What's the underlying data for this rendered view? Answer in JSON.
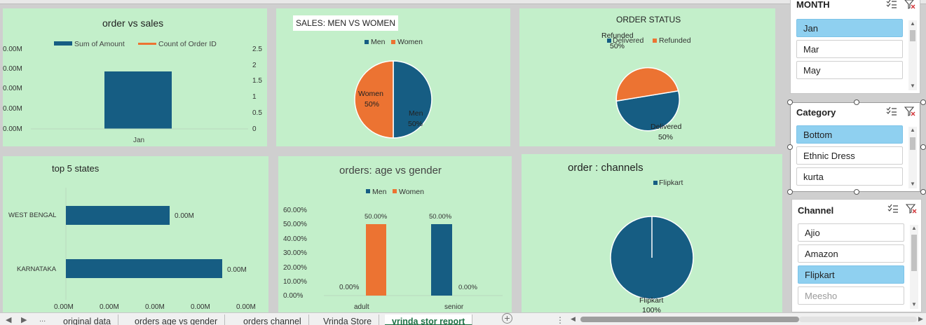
{
  "panels": {
    "order_sales": {
      "title": "order  vs sales",
      "legend": [
        "Sum of Amount",
        "Count of Order ID"
      ],
      "y_left_ticks": [
        "0.00M",
        "0.00M",
        "0.00M",
        "0.00M",
        "0.00M"
      ],
      "y_right_ticks": [
        "2.5",
        "2",
        "1.5",
        "1",
        "0.5",
        "0"
      ],
      "x_label": "Jan"
    },
    "sales_gender": {
      "title": "SALES: MEN VS WOMEN",
      "legend": [
        "Men",
        "Women"
      ],
      "labels": [
        {
          "name": "Women",
          "pct": "50%"
        },
        {
          "name": "Men",
          "pct": "50%"
        }
      ]
    },
    "order_status": {
      "title": "ORDER STATUS",
      "legend": [
        "Delivered",
        "Refunded"
      ],
      "labels": [
        {
          "name": "Refunded",
          "pct": "50%"
        },
        {
          "name": "Delivered",
          "pct": "50%"
        }
      ]
    },
    "top_states": {
      "title": "top 5 states",
      "categories": [
        "WEST BENGAL",
        "KARNATAKA"
      ],
      "data_labels": [
        "0.00M",
        "0.00M"
      ],
      "x_ticks": [
        "0.00M",
        "0.00M",
        "0.00M",
        "0.00M",
        "0.00M"
      ]
    },
    "age_gender": {
      "title": "orders: age vs gender",
      "legend": [
        "Men",
        "Women"
      ],
      "y_ticks": [
        "60.00%",
        "50.00%",
        "40.00%",
        "30.00%",
        "20.00%",
        "10.00%",
        "0.00%"
      ],
      "categories": [
        "adult",
        "senior"
      ],
      "data_labels": {
        "adult_men": "0.00%",
        "adult_women": "50.00%",
        "senior_men": "50.00%",
        "senior_women": "0.00%"
      }
    },
    "channels": {
      "title": "order :  channels",
      "legend": [
        "Flipkart"
      ],
      "label_name": "Flipkart",
      "label_pct": "100%"
    }
  },
  "slicers": {
    "month": {
      "title": "MONTH",
      "items": [
        {
          "label": "Jan",
          "selected": true
        },
        {
          "label": "Mar",
          "selected": false
        },
        {
          "label": "May",
          "selected": false
        }
      ]
    },
    "category": {
      "title": "Category",
      "items": [
        {
          "label": "Bottom",
          "selected": true
        },
        {
          "label": "Ethnic Dress",
          "selected": false
        },
        {
          "label": "kurta",
          "selected": false
        }
      ]
    },
    "channel": {
      "title": "Channel",
      "items": [
        {
          "label": "Ajio",
          "selected": false
        },
        {
          "label": "Amazon",
          "selected": false
        },
        {
          "label": "Flipkart",
          "selected": true
        },
        {
          "label": "Meesho",
          "selected": false
        }
      ]
    }
  },
  "tabs": [
    "original data",
    "orders age vs gender",
    "orders channel",
    "Vrinda Store",
    "vrinda stor report"
  ],
  "active_tab": "vrinda stor report",
  "nav": {
    "more": "...",
    "add": "+",
    "menu": "⋮"
  },
  "colors": {
    "blue": "#165d83",
    "orange": "#ec7332",
    "panel": "#c3efca",
    "selected": "#8fd0f0"
  },
  "chart_data": [
    {
      "type": "bar",
      "title": "order  vs sales",
      "categories": [
        "Jan"
      ],
      "series": [
        {
          "name": "Sum of Amount",
          "values": [
            0
          ]
        },
        {
          "name": "Count of Order ID",
          "values": [
            1.5
          ]
        }
      ],
      "ylim_right": [
        0,
        2.5
      ]
    },
    {
      "type": "pie",
      "title": "SALES: MEN VS WOMEN",
      "categories": [
        "Men",
        "Women"
      ],
      "values": [
        50,
        50
      ]
    },
    {
      "type": "pie",
      "title": "ORDER STATUS",
      "categories": [
        "Delivered",
        "Refunded"
      ],
      "values": [
        50,
        50
      ]
    },
    {
      "type": "bar",
      "title": "top 5 states",
      "categories": [
        "WEST BENGAL",
        "KARNATAKA"
      ],
      "values": [
        0,
        0
      ],
      "relative_lengths": [
        0.66,
        1.0
      ]
    },
    {
      "type": "bar",
      "title": "orders: age vs gender",
      "categories": [
        "adult",
        "senior"
      ],
      "series": [
        {
          "name": "Men",
          "values": [
            0,
            50
          ]
        },
        {
          "name": "Women",
          "values": [
            50,
            0
          ]
        }
      ],
      "ylim": [
        0,
        60
      ]
    },
    {
      "type": "pie",
      "title": "order :  channels",
      "categories": [
        "Flipkart"
      ],
      "values": [
        100
      ]
    }
  ]
}
